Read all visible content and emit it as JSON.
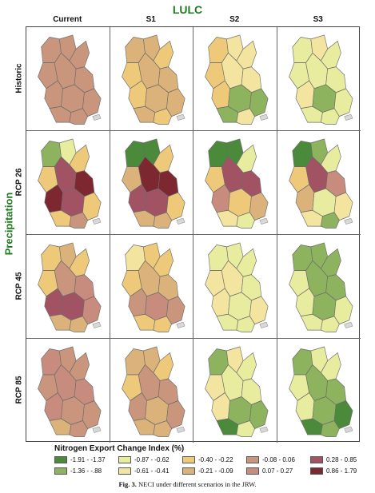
{
  "figure": {
    "top_title": "LULC",
    "side_title": "Precipitation",
    "columns": [
      "Current",
      "S1",
      "S2",
      "S3"
    ],
    "rows": [
      "Historic",
      "RCP 26",
      "RCP 45",
      "RCP 85"
    ],
    "caption_label": "Fig. 3.",
    "caption_text": "NECI under different scenarios in the JRW."
  },
  "legend": {
    "title": "Nitrogen Export Change Index (%)",
    "classes": [
      {
        "label": "-1.91 - -1.37",
        "color": "#4b8a3a"
      },
      {
        "label": "-1.36 - -.88",
        "color": "#8db35e"
      },
      {
        "label": "-0.87 - -0.62",
        "color": "#e8ec9e"
      },
      {
        "label": "-0.61 - -0.41",
        "color": "#f3e4a0"
      },
      {
        "label": "-0.40 - -0.22",
        "color": "#edc979"
      },
      {
        "label": "-0.21 - -0.09",
        "color": "#dcb27b"
      },
      {
        "label": "-0.08 - 0.06",
        "color": "#c9957c"
      },
      {
        "label": "0.07 - 0.27",
        "color": "#c88c7e"
      },
      {
        "label": "0.28 - 0.85",
        "color": "#a25363"
      },
      {
        "label": "0.86 - 1.79",
        "color": "#7d2730"
      }
    ]
  },
  "maps": [
    [
      [
        6,
        6,
        6,
        6,
        6,
        6,
        6,
        6,
        6,
        6,
        6
      ],
      [
        5,
        5,
        4,
        4,
        5,
        5,
        4,
        5,
        5,
        5,
        4
      ],
      [
        4,
        3,
        3,
        4,
        3,
        3,
        4,
        1,
        1,
        1,
        3
      ],
      [
        2,
        3,
        2,
        2,
        2,
        2,
        3,
        1,
        2,
        2,
        2
      ]
    ],
    [
      [
        1,
        2,
        4,
        4,
        8,
        9,
        9,
        8,
        4,
        4,
        6
      ],
      [
        0,
        0,
        4,
        5,
        9,
        9,
        8,
        8,
        4,
        5,
        5
      ],
      [
        0,
        0,
        2,
        4,
        8,
        8,
        7,
        4,
        5,
        3,
        2
      ],
      [
        0,
        1,
        2,
        4,
        8,
        7,
        5,
        2,
        3,
        3,
        1
      ]
    ],
    [
      [
        4,
        5,
        4,
        4,
        6,
        7,
        8,
        8,
        7,
        5,
        5
      ],
      [
        3,
        4,
        4,
        4,
        5,
        5,
        6,
        7,
        6,
        4,
        4
      ],
      [
        2,
        2,
        2,
        3,
        3,
        2,
        3,
        2,
        3,
        2,
        2
      ],
      [
        1,
        1,
        1,
        2,
        1,
        1,
        2,
        1,
        2,
        2,
        2
      ]
    ],
    [
      [
        7,
        6,
        6,
        6,
        7,
        7,
        7,
        6,
        6,
        5,
        6
      ],
      [
        5,
        5,
        4,
        4,
        6,
        6,
        6,
        5,
        6,
        5,
        5
      ],
      [
        1,
        3,
        2,
        3,
        2,
        2,
        3,
        1,
        1,
        0,
        2
      ],
      [
        1,
        2,
        2,
        2,
        1,
        1,
        2,
        1,
        0,
        0,
        1
      ]
    ]
  ]
}
